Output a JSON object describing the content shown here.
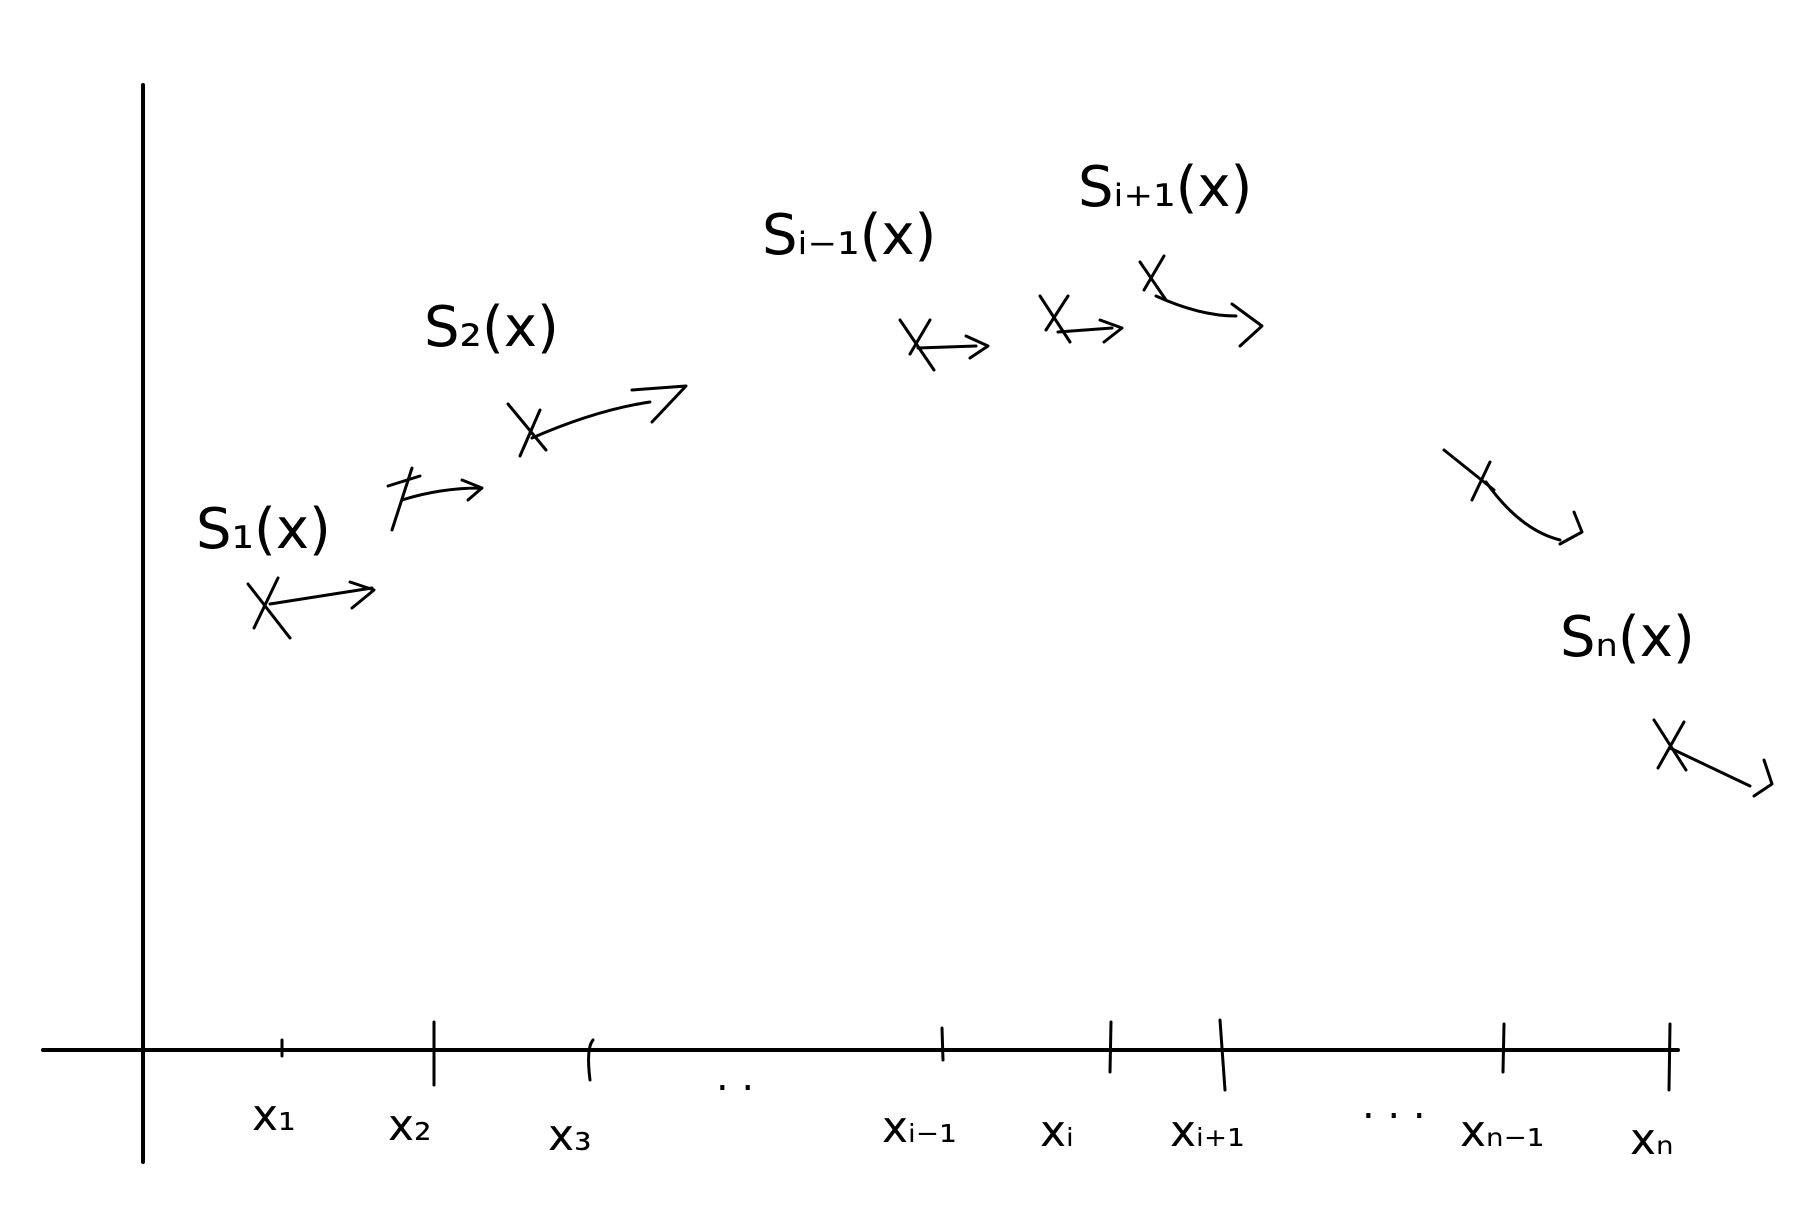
{
  "diagram": {
    "title": "",
    "ink_color": "#000000",
    "background": "#ffffff",
    "knots": [
      {
        "label": "x₁"
      },
      {
        "label": "x₂"
      },
      {
        "label": "x₃"
      },
      {
        "label": "xᵢ₋₁"
      },
      {
        "label": "xᵢ"
      },
      {
        "label": "xᵢ₊₁"
      },
      {
        "label": "xₙ₋₁"
      },
      {
        "label": "xₙ"
      }
    ],
    "ellipses": [
      ". .",
      ". . ."
    ],
    "splines": [
      {
        "label": "S₁(x)"
      },
      {
        "label": "S₂(x)"
      },
      {
        "label": "Sᵢ₋₁(x)"
      },
      {
        "label": "Sᵢ₊₁(x)"
      },
      {
        "label": "Sₙ(x)"
      }
    ]
  }
}
